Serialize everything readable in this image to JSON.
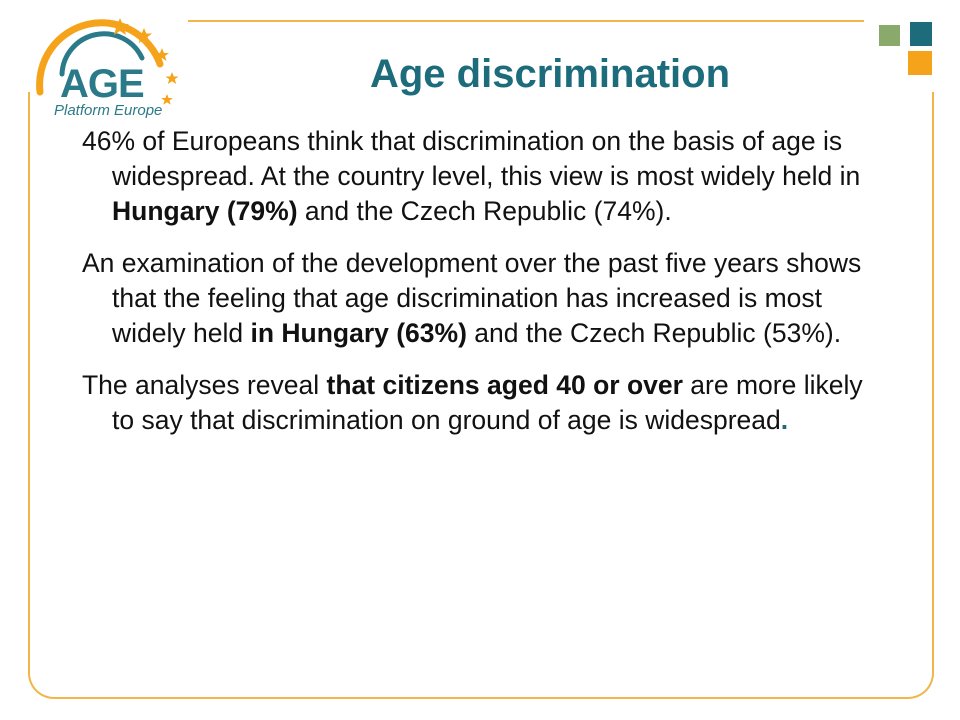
{
  "logo": {
    "word": "AGE",
    "subtitle": "Platform Europe",
    "colors": {
      "teal": "#2b7a8a",
      "orange": "#f5a31a"
    }
  },
  "title": "Age discrimination",
  "paragraphs": [
    {
      "p1a": "46% of Europeans think that discrimination on the basis of age is widespread. At the country level, this view is most widely held in ",
      "p1b": "Hungary (79%)",
      "p1c": " and the Czech Republic (74%)."
    },
    {
      "p2a": "An examination of the development over the past five years shows that the feeling that age discrimination has increased is most widely held ",
      "p2b": "in Hungary (63%)",
      "p2c": " and the Czech Republic (53%)."
    },
    {
      "p3a": "The analyses reveal ",
      "p3b": "that citizens aged 40 or over",
      "p3c": " are more likely to say that discrimination on ground of age is widespread",
      "p3d": "."
    }
  ],
  "colors": {
    "frame": "#f2b54a",
    "title": "#1c6c7b",
    "square_green": "#8aaa6b",
    "square_teal": "#1c6c7b",
    "square_orange": "#f5a31a"
  }
}
